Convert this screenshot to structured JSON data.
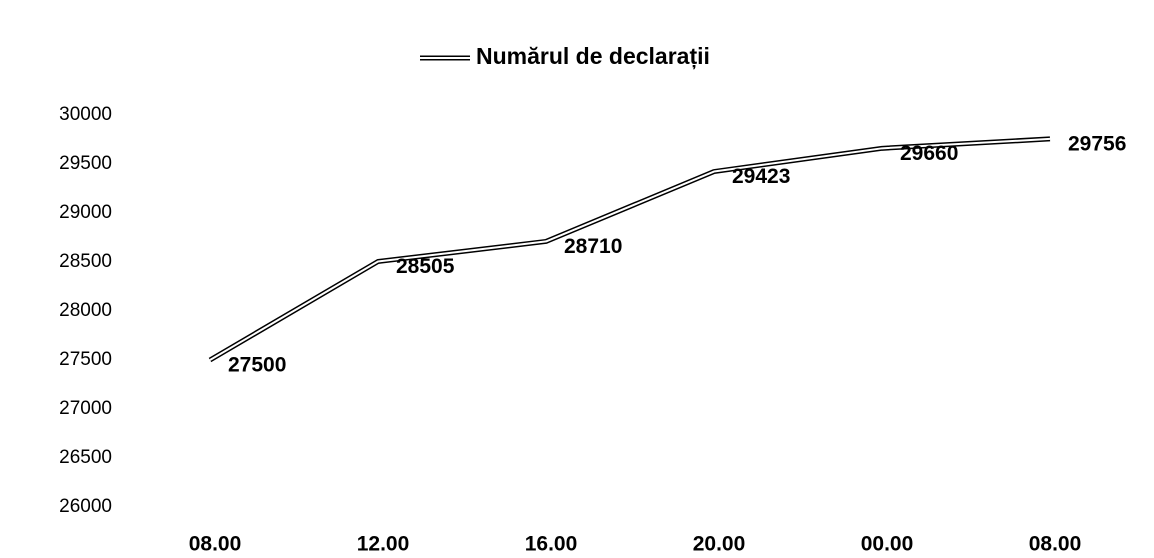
{
  "chart_data": {
    "type": "line",
    "categories": [
      "08.00",
      "12.00",
      "16.00",
      "20.00",
      "00.00",
      "08.00"
    ],
    "series": [
      {
        "name": "Numărul de declarații",
        "color": "#000000",
        "values": [
          27500,
          28505,
          28710,
          29423,
          29660,
          29756
        ]
      }
    ],
    "ylim": [
      26000,
      30000
    ],
    "yticks": [
      26000,
      26500,
      27000,
      27500,
      28000,
      28500,
      29000,
      29500,
      30000
    ],
    "grid": false,
    "legend": "top",
    "data_labels": true
  }
}
